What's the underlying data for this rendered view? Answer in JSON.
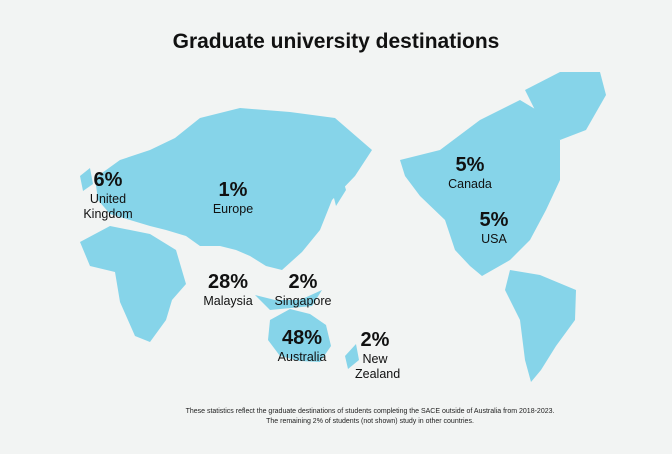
{
  "title": "Graduate university destinations",
  "destinations": [
    {
      "value": "6%",
      "name": "United Kingdom"
    },
    {
      "value": "1%",
      "name": "Europe"
    },
    {
      "value": "28%",
      "name": "Malaysia"
    },
    {
      "value": "2%",
      "name": "Singapore"
    },
    {
      "value": "48%",
      "name": "Australia"
    },
    {
      "value": "2%",
      "name": "New Zealand"
    },
    {
      "value": "5%",
      "name": "Canada"
    },
    {
      "value": "5%",
      "name": "USA"
    }
  ],
  "footnote": [
    "These statistics reflect the graduate destinations of students completing the SACE outside of Australia from 2018-2023.",
    "The remaining 2% of students (not shown) study in other countries."
  ]
}
